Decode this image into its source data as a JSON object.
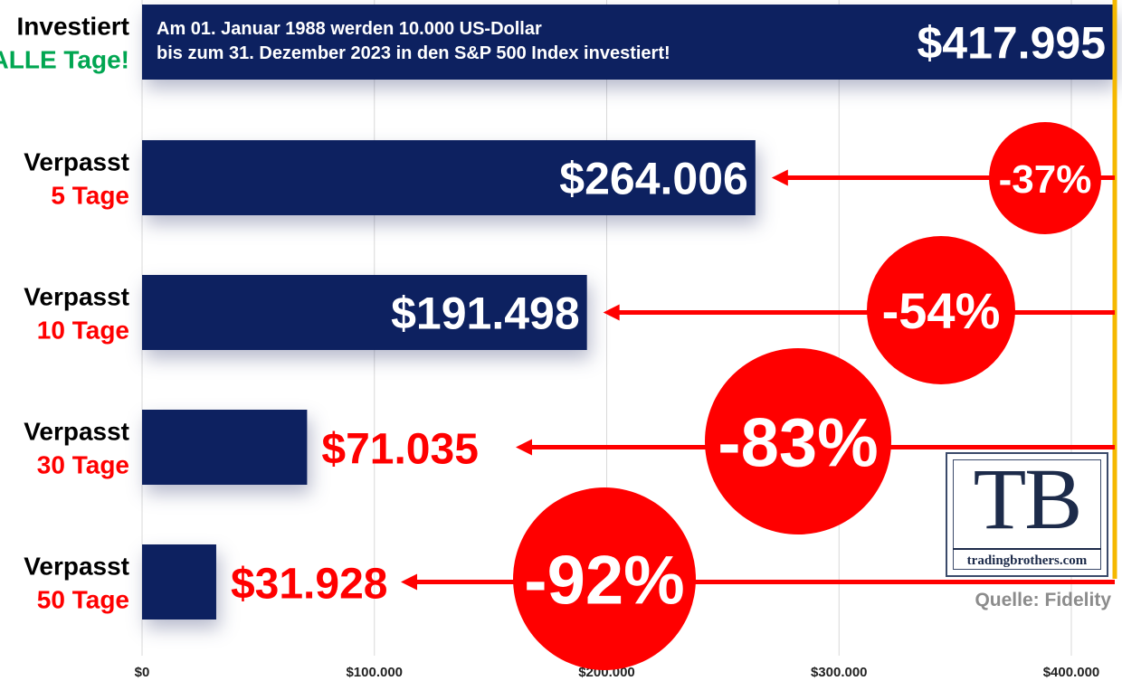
{
  "chart_data": {
    "type": "bar",
    "orientation": "horizontal",
    "categories": [
      {
        "line1": "Investiert",
        "line2": "ALLE Tage!"
      },
      {
        "line1": "Verpasst",
        "line2": "5 Tage"
      },
      {
        "line1": "Verpasst",
        "line2": "10 Tage"
      },
      {
        "line1": "Verpasst",
        "line2": "30 Tage"
      },
      {
        "line1": "Verpasst",
        "line2": "50 Tage"
      }
    ],
    "values": [
      417995,
      264006,
      191498,
      71035,
      31928
    ],
    "value_labels": [
      "$417.995",
      "$264.006",
      "$191.498",
      "$71.035",
      "$31.928"
    ],
    "loss_labels": [
      "",
      "-37%",
      "-54%",
      "-83%",
      "-92%"
    ],
    "annotation": {
      "line1": "Am 01. Januar 1988 werden 10.000 US-Dollar",
      "line2": "bis zum 31. Dezember 2023 in den S&P 500 Index investiert!"
    },
    "xlim": [
      0,
      420000
    ],
    "x_ticks": [
      0,
      100000,
      200000,
      300000,
      400000
    ],
    "x_tick_labels": [
      "$0",
      "$100.000",
      "$200.000",
      "$300.000",
      "$400.000"
    ],
    "grid": "vertical",
    "colors": {
      "bar": "#0d2160",
      "negative": "#ff0000",
      "positive_label": "#00a651",
      "reference_line": "#f5b800",
      "grid": "#d9d9d9",
      "text": "#000000"
    }
  },
  "logo": {
    "letters": "TB",
    "url": "tradingbrothers.com"
  },
  "source": "Quelle: Fidelity"
}
